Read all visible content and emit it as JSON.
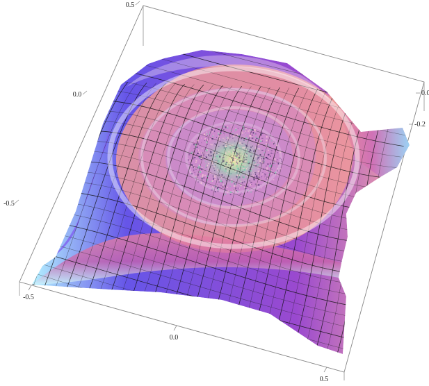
{
  "chart_data": {
    "type": "surface3d",
    "title": "",
    "xlabel": "",
    "ylabel": "",
    "zlabel": "",
    "xlim": [
      -0.5,
      0.5
    ],
    "ylim": [
      -0.5,
      0.5
    ],
    "zlim": [
      -0.45,
      0.15
    ],
    "x_ticks": [
      "-0.5",
      "0.0",
      "0.5"
    ],
    "y_ticks": [
      "-0.5",
      "0.0",
      "0.5"
    ],
    "z_ticks": [
      "0.0",
      "-0.2"
    ],
    "legend": false,
    "grid": false,
    "mesh": true,
    "colors": {
      "low": "#4a2bbb",
      "mid_low": "#8b45c8",
      "mid": "#e48fb0",
      "high": "#ffd0b0",
      "highlight": "#a7e8ff",
      "center": "#8fd3a0",
      "mesh": "#111111",
      "box": "#8d8d8d"
    }
  }
}
